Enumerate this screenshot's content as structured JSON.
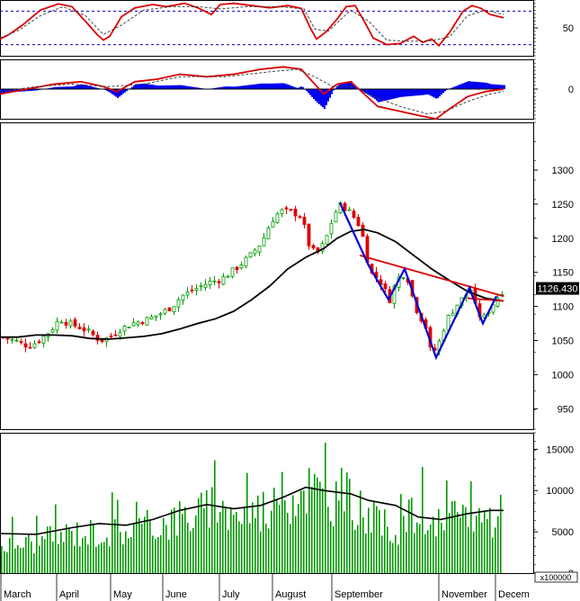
{
  "chart_data": [
    {
      "panel": "stochastic",
      "type": "line",
      "ylim": [
        0,
        100
      ],
      "ticks": [
        {
          "value": 50,
          "label": "50"
        }
      ],
      "ref_levels": [
        80,
        20
      ],
      "series": [
        {
          "role": "k",
          "color": "#dd0000",
          "points": [
            [
              0,
              30
            ],
            [
              10,
              38
            ],
            [
              25,
              55
            ],
            [
              45,
              82
            ],
            [
              65,
              93
            ],
            [
              80,
              88
            ],
            [
              95,
              62
            ],
            [
              108,
              38
            ],
            [
              115,
              28
            ],
            [
              122,
              35
            ],
            [
              135,
              70
            ],
            [
              150,
              86
            ],
            [
              170,
              92
            ],
            [
              185,
              88
            ],
            [
              205,
              94
            ],
            [
              220,
              86
            ],
            [
              235,
              74
            ],
            [
              245,
              92
            ],
            [
              260,
              94
            ],
            [
              280,
              90
            ],
            [
              300,
              86
            ],
            [
              320,
              90
            ],
            [
              335,
              85
            ],
            [
              345,
              50
            ],
            [
              352,
              30
            ],
            [
              362,
              42
            ],
            [
              375,
              66
            ],
            [
              385,
              88
            ],
            [
              395,
              90
            ],
            [
              405,
              62
            ],
            [
              415,
              32
            ],
            [
              430,
              20
            ],
            [
              445,
              22
            ],
            [
              460,
              35
            ],
            [
              470,
              24
            ],
            [
              480,
              30
            ],
            [
              488,
              18
            ],
            [
              500,
              42
            ],
            [
              515,
              80
            ],
            [
              525,
              90
            ],
            [
              535,
              85
            ],
            [
              545,
              74
            ],
            [
              560,
              68
            ]
          ]
        },
        {
          "role": "d",
          "color": "#444444",
          "dashed": true,
          "points": [
            [
              0,
              32
            ],
            [
              20,
              45
            ],
            [
              45,
              72
            ],
            [
              70,
              88
            ],
            [
              95,
              72
            ],
            [
              115,
              38
            ],
            [
              135,
              55
            ],
            [
              160,
              82
            ],
            [
              190,
              88
            ],
            [
              220,
              88
            ],
            [
              245,
              84
            ],
            [
              275,
              88
            ],
            [
              310,
              88
            ],
            [
              338,
              84
            ],
            [
              350,
              48
            ],
            [
              365,
              44
            ],
            [
              390,
              82
            ],
            [
              410,
              62
            ],
            [
              430,
              28
            ],
            [
              455,
              26
            ],
            [
              480,
              27
            ],
            [
              500,
              34
            ],
            [
              520,
              72
            ],
            [
              540,
              82
            ],
            [
              560,
              74
            ]
          ]
        }
      ]
    },
    {
      "panel": "macd",
      "type": "line",
      "ylim": [
        -12,
        12
      ],
      "ticks": [
        {
          "value": 0,
          "label": "0"
        }
      ],
      "series": [
        {
          "role": "macd",
          "color": "#dd0000",
          "points": [
            [
              0,
              -2
            ],
            [
              30,
              0
            ],
            [
              60,
              2
            ],
            [
              90,
              3
            ],
            [
              115,
              1
            ],
            [
              130,
              -1
            ],
            [
              150,
              3
            ],
            [
              175,
              4
            ],
            [
              200,
              6
            ],
            [
              230,
              5
            ],
            [
              260,
              6
            ],
            [
              290,
              8
            ],
            [
              315,
              9
            ],
            [
              335,
              8
            ],
            [
              350,
              2
            ],
            [
              360,
              -2
            ],
            [
              375,
              2
            ],
            [
              390,
              3
            ],
            [
              405,
              -2
            ],
            [
              420,
              -7
            ],
            [
              445,
              -9
            ],
            [
              470,
              -11
            ],
            [
              485,
              -12
            ],
            [
              500,
              -8
            ],
            [
              520,
              -3
            ],
            [
              540,
              -1
            ],
            [
              560,
              0
            ]
          ]
        },
        {
          "role": "signal",
          "color": "#444444",
          "dashed": true,
          "points": [
            [
              0,
              -1
            ],
            [
              40,
              1
            ],
            [
              80,
              2
            ],
            [
              120,
              1
            ],
            [
              160,
              2
            ],
            [
              200,
              5
            ],
            [
              250,
              5
            ],
            [
              300,
              7
            ],
            [
              330,
              8
            ],
            [
              350,
              5
            ],
            [
              370,
              1
            ],
            [
              395,
              1
            ],
            [
              415,
              -3
            ],
            [
              445,
              -7
            ],
            [
              475,
              -10
            ],
            [
              495,
              -9
            ],
            [
              520,
              -5
            ],
            [
              545,
              -2
            ],
            [
              560,
              -1
            ]
          ]
        }
      ]
    },
    {
      "panel": "price",
      "type": "candlestick",
      "ylim": [
        920,
        1370
      ],
      "ticks": [
        {
          "value": 950,
          "label": "950"
        },
        {
          "value": 1000,
          "label": "1000"
        },
        {
          "value": 1050,
          "label": "1050"
        },
        {
          "value": 1100,
          "label": "1100"
        },
        {
          "value": 1150,
          "label": "1150"
        },
        {
          "value": 1200,
          "label": "1200"
        },
        {
          "value": 1250,
          "label": "1250"
        },
        {
          "value": 1300,
          "label": "1300"
        }
      ],
      "last_value": "1126.430",
      "close_path": [
        [
          0,
          1055
        ],
        [
          15,
          1050
        ],
        [
          30,
          1042
        ],
        [
          40,
          1048
        ],
        [
          55,
          1065
        ],
        [
          65,
          1082
        ],
        [
          75,
          1075
        ],
        [
          90,
          1068
        ],
        [
          100,
          1060
        ],
        [
          110,
          1050
        ],
        [
          120,
          1055
        ],
        [
          130,
          1065
        ],
        [
          145,
          1075
        ],
        [
          160,
          1080
        ],
        [
          175,
          1088
        ],
        [
          190,
          1100
        ],
        [
          200,
          1115
        ],
        [
          215,
          1125
        ],
        [
          230,
          1135
        ],
        [
          245,
          1140
        ],
        [
          260,
          1155
        ],
        [
          275,
          1172
        ],
        [
          290,
          1195
        ],
        [
          300,
          1225
        ],
        [
          310,
          1240
        ],
        [
          325,
          1238
        ],
        [
          335,
          1230
        ],
        [
          340,
          1195
        ],
        [
          350,
          1175
        ],
        [
          360,
          1195
        ],
        [
          370,
          1235
        ],
        [
          378,
          1250
        ],
        [
          390,
          1235
        ],
        [
          400,
          1215
        ],
        [
          410,
          1150
        ],
        [
          420,
          1140
        ],
        [
          432,
          1110
        ],
        [
          440,
          1140
        ],
        [
          450,
          1150
        ],
        [
          460,
          1100
        ],
        [
          472,
          1070
        ],
        [
          478,
          1030
        ],
        [
          485,
          1040
        ],
        [
          495,
          1080
        ],
        [
          505,
          1100
        ],
        [
          515,
          1115
        ],
        [
          522,
          1125
        ],
        [
          528,
          1095
        ],
        [
          535,
          1080
        ],
        [
          545,
          1100
        ],
        [
          555,
          1120
        ],
        [
          560,
          1126
        ]
      ],
      "ma_line": [
        [
          0,
          1055
        ],
        [
          20,
          1055
        ],
        [
          40,
          1058
        ],
        [
          60,
          1058
        ],
        [
          80,
          1057
        ],
        [
          100,
          1053
        ],
        [
          120,
          1052
        ],
        [
          140,
          1054
        ],
        [
          160,
          1056
        ],
        [
          180,
          1060
        ],
        [
          200,
          1067
        ],
        [
          220,
          1075
        ],
        [
          240,
          1082
        ],
        [
          260,
          1093
        ],
        [
          280,
          1110
        ],
        [
          300,
          1130
        ],
        [
          320,
          1155
        ],
        [
          340,
          1172
        ],
        [
          360,
          1185
        ],
        [
          375,
          1200
        ],
        [
          390,
          1210
        ],
        [
          405,
          1213
        ],
        [
          420,
          1208
        ],
        [
          440,
          1195
        ],
        [
          460,
          1175
        ],
        [
          480,
          1155
        ],
        [
          500,
          1138
        ],
        [
          520,
          1122
        ],
        [
          540,
          1112
        ],
        [
          560,
          1108
        ]
      ],
      "blue_pattern": [
        [
          378,
          1252
        ],
        [
          410,
          1160
        ],
        [
          432,
          1110
        ],
        [
          450,
          1155
        ],
        [
          485,
          1025
        ],
        [
          522,
          1127
        ],
        [
          537,
          1075
        ],
        [
          552,
          1115
        ]
      ],
      "resistance": [
        [
          400,
          1175
        ],
        [
          560,
          1115
        ]
      ],
      "support": [
        [
          520,
          1112
        ],
        [
          560,
          1108
        ]
      ]
    },
    {
      "panel": "volume",
      "type": "bar",
      "ylim": [
        0,
        17000
      ],
      "ticks": [
        {
          "value": 0,
          "label": "0"
        },
        {
          "value": 5000,
          "label": "5000"
        },
        {
          "value": 10000,
          "label": "10000"
        },
        {
          "value": 15000,
          "label": "15000"
        }
      ],
      "unit_label": "x100000",
      "volume_path": [
        [
          0,
          3800
        ],
        [
          40,
          4200
        ],
        [
          80,
          5500
        ],
        [
          120,
          5500
        ],
        [
          160,
          6200
        ],
        [
          200,
          7500
        ],
        [
          230,
          8500
        ],
        [
          260,
          7800
        ],
        [
          300,
          9000
        ],
        [
          320,
          10500
        ],
        [
          340,
          12000
        ],
        [
          360,
          10000
        ],
        [
          380,
          10500
        ],
        [
          400,
          8500
        ],
        [
          420,
          6500
        ],
        [
          440,
          6000
        ],
        [
          460,
          8000
        ],
        [
          480,
          6000
        ],
        [
          500,
          7000
        ],
        [
          520,
          8000
        ],
        [
          540,
          7500
        ],
        [
          560,
          8000
        ]
      ],
      "avg_line": [
        [
          0,
          4800
        ],
        [
          40,
          4700
        ],
        [
          80,
          5500
        ],
        [
          110,
          6000
        ],
        [
          140,
          5800
        ],
        [
          170,
          6500
        ],
        [
          200,
          7600
        ],
        [
          230,
          8300
        ],
        [
          260,
          7800
        ],
        [
          290,
          8200
        ],
        [
          315,
          9200
        ],
        [
          340,
          10400
        ],
        [
          360,
          10000
        ],
        [
          390,
          9600
        ],
        [
          410,
          8800
        ],
        [
          440,
          8200
        ],
        [
          465,
          6800
        ],
        [
          490,
          6500
        ],
        [
          520,
          7200
        ],
        [
          545,
          7600
        ],
        [
          560,
          7600
        ]
      ]
    }
  ],
  "x_axis": {
    "months": [
      {
        "label": "March",
        "x": 0
      },
      {
        "label": "April",
        "x": 62
      },
      {
        "label": "May",
        "x": 122
      },
      {
        "label": "June",
        "x": 180
      },
      {
        "label": "July",
        "x": 243
      },
      {
        "label": "August",
        "x": 302
      },
      {
        "label": "September",
        "x": 368
      },
      {
        "label": "November",
        "x": 487
      },
      {
        "label": "Decem",
        "x": 550
      }
    ]
  }
}
